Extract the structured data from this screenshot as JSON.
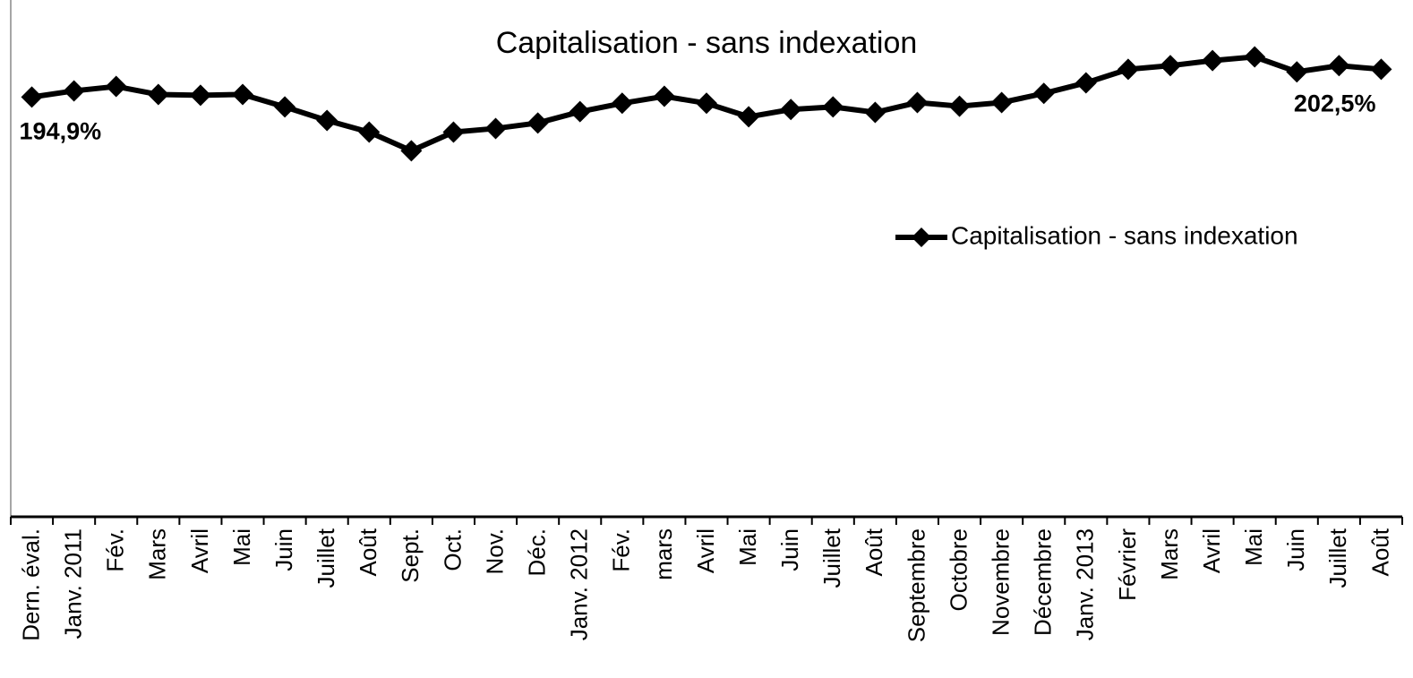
{
  "chart_data": {
    "type": "line",
    "title": "Capitalisation - sans indexation",
    "categories": [
      "Dern. éval.",
      "Janv. 2011",
      "Fév.",
      "Mars",
      "Avril",
      "Mai",
      "Juin",
      "Juillet",
      "Août",
      "Sept.",
      "Oct.",
      "Nov.",
      "Déc.",
      "Janv. 2012",
      "Fév.",
      "mars",
      "Avril",
      "Mai",
      "Juin",
      "Juillet",
      "Août",
      "Septembre",
      "Octobre",
      "Novembre",
      "Décembre",
      "Janv. 2013",
      "Février",
      "Mars",
      "Avril",
      "Mai",
      "Juin",
      "Juillet",
      "Août"
    ],
    "series": [
      {
        "name": "Capitalisation - sans indexation",
        "color": "#000000",
        "values": [
          194.9,
          196.6,
          197.8,
          195.6,
          195.4,
          195.6,
          192.2,
          188.5,
          185.3,
          180.2,
          185.3,
          186.3,
          187.8,
          190.9,
          193.2,
          195.1,
          193.2,
          189.5,
          191.5,
          192.2,
          190.7,
          193.4,
          192.4,
          193.4,
          195.9,
          198.8,
          202.5,
          203.5,
          204.9,
          205.9,
          201.8,
          203.5,
          202.5
        ],
        "value_labels": [
          "194,9%",
          null,
          null,
          null,
          null,
          null,
          null,
          null,
          null,
          null,
          null,
          null,
          null,
          null,
          null,
          null,
          null,
          null,
          null,
          null,
          null,
          null,
          null,
          null,
          null,
          null,
          null,
          null,
          null,
          null,
          null,
          null,
          "202,5%"
        ]
      }
    ],
    "ylim": [
      80,
      220
    ],
    "legend": "right"
  }
}
